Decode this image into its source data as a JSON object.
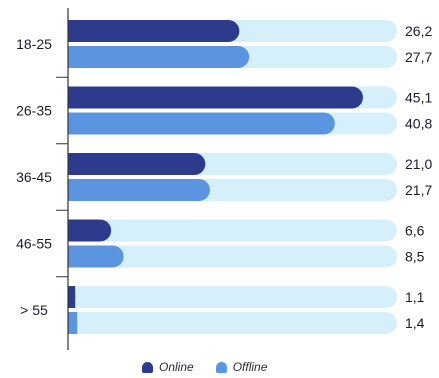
{
  "chart_data": {
    "type": "bar",
    "orientation": "horizontal",
    "categories": [
      "18-25",
      "26-35",
      "36-45",
      "46-55",
      "> 55"
    ],
    "series": [
      {
        "name": "Online",
        "values": [
          26.2,
          45.1,
          21.0,
          6.6,
          1.1
        ],
        "labels": [
          "26,2",
          "45,1",
          "21,0",
          "6,6",
          "1,1"
        ],
        "color": "#2e3b8c"
      },
      {
        "name": "Offline",
        "values": [
          27.7,
          40.8,
          21.7,
          8.5,
          1.4
        ],
        "labels": [
          "27,7",
          "40,8",
          "21,7",
          "8,5",
          "1,4"
        ],
        "color": "#5b95df"
      }
    ],
    "track_color": "#d5effb",
    "xlim": [
      0,
      50
    ],
    "grid": false,
    "legend_position": "bottom"
  }
}
